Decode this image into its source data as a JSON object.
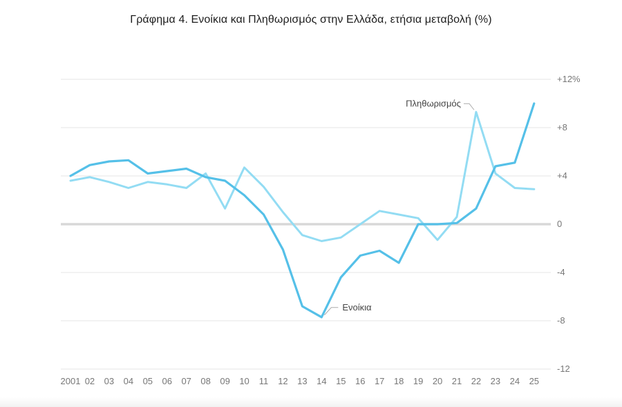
{
  "chart_data": {
    "type": "line",
    "title": "Γράφημα 4. Ενοίκια και Πληθωρισμός στην Ελλάδα, ετήσια μεταβολή (%)",
    "x": [
      2001,
      2002,
      2003,
      2004,
      2005,
      2006,
      2007,
      2008,
      2009,
      2010,
      2011,
      2012,
      2013,
      2014,
      2015,
      2016,
      2017,
      2018,
      2019,
      2020,
      2021,
      2022,
      2023,
      2024,
      2025
    ],
    "x_tick_labels": [
      "2001",
      "02",
      "03",
      "04",
      "05",
      "06",
      "07",
      "08",
      "09",
      "10",
      "11",
      "12",
      "13",
      "14",
      "15",
      "16",
      "17",
      "18",
      "19",
      "20",
      "21",
      "22",
      "23",
      "24",
      "25"
    ],
    "y_tick_labels": [
      "+12%",
      "+8",
      "+4",
      "0",
      "-4",
      "-8",
      "-12"
    ],
    "y_ticks": [
      12,
      8,
      4,
      0,
      -4,
      -8,
      -12
    ],
    "ylim": [
      -12,
      12
    ],
    "grid": true,
    "y_axis_side": "right",
    "series": [
      {
        "name": "Ενοίκια",
        "color": "#55c0e8",
        "values": [
          4.0,
          4.9,
          5.2,
          5.3,
          4.2,
          4.4,
          4.6,
          3.9,
          3.6,
          2.4,
          0.8,
          -2.1,
          -6.8,
          -7.7,
          -4.4,
          -2.6,
          -2.2,
          -3.2,
          0.0,
          0.0,
          0.1,
          1.3,
          4.8,
          5.1,
          10.0
        ]
      },
      {
        "name": "Πληθωρισμός",
        "color": "#93dcf3",
        "values": [
          3.6,
          3.9,
          3.5,
          3.0,
          3.5,
          3.3,
          3.0,
          4.2,
          1.3,
          4.7,
          3.1,
          1.0,
          -0.9,
          -1.4,
          -1.1,
          0.0,
          1.1,
          0.8,
          0.5,
          -1.3,
          0.6,
          9.3,
          4.2,
          3.0,
          2.9
        ]
      }
    ]
  }
}
